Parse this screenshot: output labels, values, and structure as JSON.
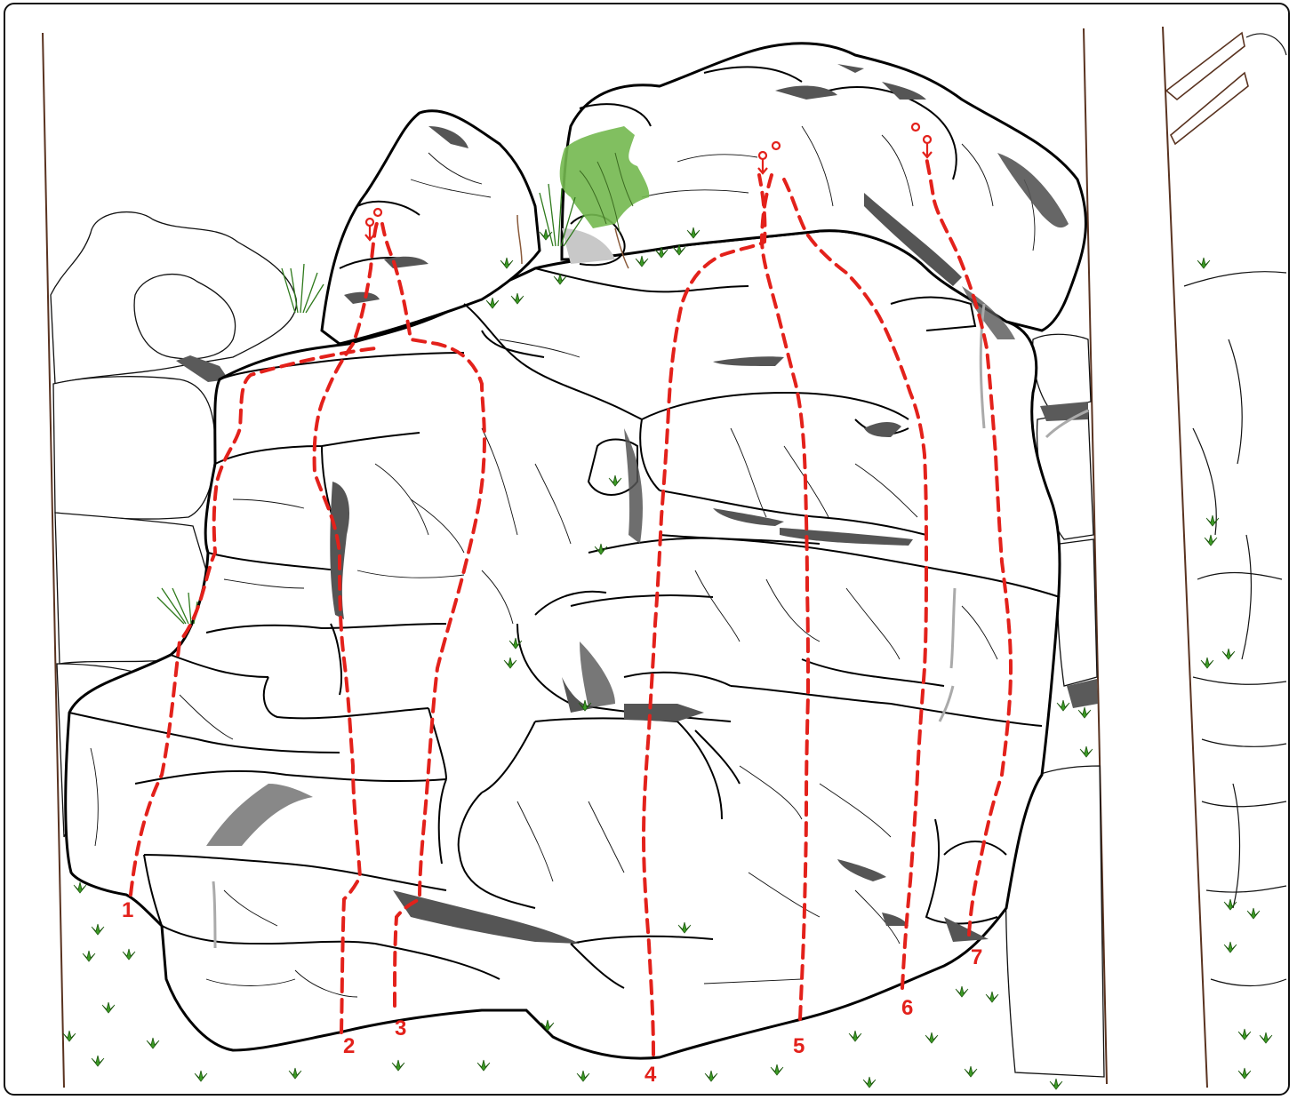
{
  "topo": {
    "colors": {
      "route": "#e3211b",
      "rock_outline": "#000000",
      "shadow": "#5a5a5a",
      "vegetation": "#3c9b25",
      "tree_patch": "#73b84f",
      "frame_line": "#5a3320"
    },
    "routes": [
      {
        "number": "1"
      },
      {
        "number": "2"
      },
      {
        "number": "3"
      },
      {
        "number": "4"
      },
      {
        "number": "5"
      },
      {
        "number": "6"
      },
      {
        "number": "7"
      }
    ],
    "anchors": 3,
    "icons": [
      "anchor-icon",
      "grass-tuft-icon",
      "tree-patch-icon"
    ]
  }
}
